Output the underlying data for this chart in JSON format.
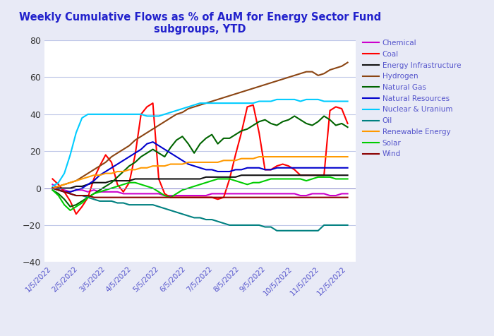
{
  "title": "Weekly Cumulative Flows as % of AuM for Energy Sector Fund\nsubgroups, YTD",
  "title_color": "#2222cc",
  "fig_background": "#e8eaf6",
  "plot_background": "#ffffff",
  "ylim": [
    -40,
    80
  ],
  "yticks": [
    -40,
    -20,
    0,
    20,
    40,
    60,
    80
  ],
  "x_labels": [
    "1/5/2022",
    "2/5/2022",
    "3/5/2022",
    "4/5/2022",
    "5/5/2022",
    "6/5/2022",
    "7/5/2022",
    "8/5/2022",
    "9/5/2022",
    "10/5/2022",
    "11/5/2022",
    "12/5/2022"
  ],
  "legend_text_color": "#5555cc",
  "series": {
    "Chemical": {
      "color": "#cc00cc",
      "data": [
        2,
        0,
        -1,
        -2,
        -1,
        -1,
        -2,
        -1,
        -2,
        -2,
        -2,
        -2,
        -3,
        -3,
        -3,
        -3,
        -3,
        -3,
        -3,
        -4,
        -4,
        -4,
        -4,
        -4,
        -4,
        -4,
        -4,
        -3,
        -3,
        -3,
        -3,
        -3,
        -3,
        -3,
        -3,
        -3,
        -3,
        -3,
        -3,
        -3,
        -3,
        -3,
        -4,
        -4,
        -3,
        -3,
        -3,
        -4,
        -4,
        -3,
        -3
      ]
    },
    "Coal": {
      "color": "#ff0000",
      "data": [
        5,
        2,
        -2,
        -7,
        -14,
        -10,
        -5,
        5,
        12,
        18,
        14,
        2,
        -2,
        3,
        18,
        40,
        44,
        46,
        5,
        -3,
        -5,
        -5,
        -5,
        -5,
        -5,
        -5,
        -5,
        -5,
        -6,
        -5,
        5,
        18,
        30,
        44,
        45,
        30,
        10,
        10,
        12,
        13,
        12,
        10,
        7,
        7,
        7,
        7,
        7,
        42,
        44,
        43,
        35
      ]
    },
    "Energy Infrastructure": {
      "color": "#111111",
      "data": [
        0,
        0,
        0,
        0,
        1,
        1,
        2,
        3,
        3,
        3,
        4,
        4,
        4,
        4,
        5,
        5,
        5,
        5,
        5,
        5,
        5,
        5,
        5,
        5,
        5,
        5,
        6,
        6,
        6,
        6,
        6,
        6,
        7,
        7,
        7,
        7,
        7,
        7,
        7,
        7,
        7,
        7,
        7,
        7,
        7,
        7,
        7,
        7,
        7,
        7,
        7
      ]
    },
    "Hydrogen": {
      "color": "#8B4513",
      "data": [
        0,
        1,
        2,
        3,
        4,
        6,
        8,
        10,
        12,
        14,
        17,
        19,
        21,
        23,
        26,
        28,
        30,
        32,
        34,
        36,
        38,
        40,
        41,
        43,
        44,
        45,
        46,
        47,
        48,
        49,
        50,
        51,
        52,
        53,
        54,
        55,
        56,
        57,
        58,
        59,
        60,
        61,
        62,
        63,
        63,
        61,
        62,
        64,
        65,
        66,
        68
      ]
    },
    "Natural Gas": {
      "color": "#006400",
      "data": [
        -1,
        -3,
        -6,
        -10,
        -9,
        -7,
        -5,
        -3,
        -1,
        1,
        3,
        6,
        9,
        12,
        14,
        17,
        19,
        21,
        19,
        17,
        22,
        26,
        28,
        24,
        19,
        24,
        27,
        29,
        24,
        27,
        27,
        29,
        31,
        32,
        34,
        36,
        37,
        35,
        34,
        36,
        37,
        39,
        37,
        35,
        34,
        36,
        39,
        37,
        34,
        35,
        33
      ]
    },
    "Natural Resources": {
      "color": "#0000cc",
      "data": [
        0,
        -1,
        -2,
        -2,
        -1,
        0,
        2,
        4,
        7,
        9,
        11,
        13,
        15,
        17,
        19,
        21,
        24,
        25,
        23,
        21,
        19,
        17,
        15,
        13,
        12,
        11,
        10,
        10,
        9,
        9,
        9,
        10,
        10,
        11,
        11,
        11,
        10,
        10,
        11,
        11,
        11,
        11,
        11,
        11,
        11,
        11,
        11,
        11,
        11,
        11,
        11
      ]
    },
    "Nuclear & Uranium": {
      "color": "#00ccff",
      "data": [
        1,
        3,
        8,
        18,
        30,
        38,
        40,
        40,
        40,
        40,
        40,
        40,
        40,
        40,
        40,
        40,
        39,
        39,
        39,
        40,
        41,
        42,
        43,
        44,
        45,
        46,
        46,
        46,
        46,
        46,
        46,
        46,
        46,
        46,
        46,
        47,
        47,
        47,
        48,
        48,
        48,
        48,
        47,
        48,
        48,
        48,
        47,
        47,
        47,
        47,
        47
      ]
    },
    "Oil": {
      "color": "#008080",
      "data": [
        0,
        -1,
        -2,
        -3,
        -4,
        -4,
        -5,
        -6,
        -7,
        -7,
        -7,
        -8,
        -8,
        -9,
        -9,
        -9,
        -9,
        -9,
        -10,
        -11,
        -12,
        -13,
        -14,
        -15,
        -16,
        -16,
        -17,
        -17,
        -18,
        -19,
        -20,
        -20,
        -20,
        -20,
        -20,
        -20,
        -21,
        -21,
        -23,
        -23,
        -23,
        -23,
        -23,
        -23,
        -23,
        -23,
        -20,
        -20,
        -20,
        -20,
        -20
      ]
    },
    "Renewable Energy": {
      "color": "#ff9900",
      "data": [
        0,
        1,
        2,
        3,
        4,
        5,
        6,
        7,
        7,
        8,
        8,
        9,
        9,
        10,
        10,
        11,
        11,
        12,
        12,
        12,
        13,
        13,
        13,
        14,
        14,
        14,
        14,
        14,
        14,
        15,
        15,
        15,
        16,
        16,
        16,
        17,
        17,
        17,
        17,
        17,
        17,
        17,
        17,
        17,
        17,
        17,
        17,
        17,
        17,
        17,
        17
      ]
    },
    "Solar": {
      "color": "#00cc00",
      "data": [
        -1,
        -4,
        -9,
        -12,
        -10,
        -8,
        -5,
        -3,
        -2,
        -1,
        0,
        1,
        2,
        3,
        3,
        2,
        1,
        0,
        -2,
        -4,
        -5,
        -3,
        -1,
        0,
        1,
        2,
        3,
        4,
        5,
        5,
        5,
        4,
        3,
        2,
        3,
        3,
        4,
        5,
        5,
        5,
        5,
        5,
        5,
        4,
        5,
        6,
        6,
        6,
        5,
        5,
        5
      ]
    },
    "Wind": {
      "color": "#8b0000",
      "data": [
        0,
        -1,
        -2,
        -3,
        -4,
        -4,
        -4,
        -5,
        -5,
        -5,
        -5,
        -5,
        -5,
        -5,
        -5,
        -5,
        -5,
        -5,
        -5,
        -5,
        -5,
        -5,
        -5,
        -5,
        -5,
        -5,
        -5,
        -5,
        -5,
        -5,
        -5,
        -5,
        -5,
        -5,
        -5,
        -5,
        -5,
        -5,
        -5,
        -5,
        -5,
        -5,
        -5,
        -5,
        -5,
        -5,
        -5,
        -5,
        -5,
        -5,
        -5
      ]
    }
  }
}
